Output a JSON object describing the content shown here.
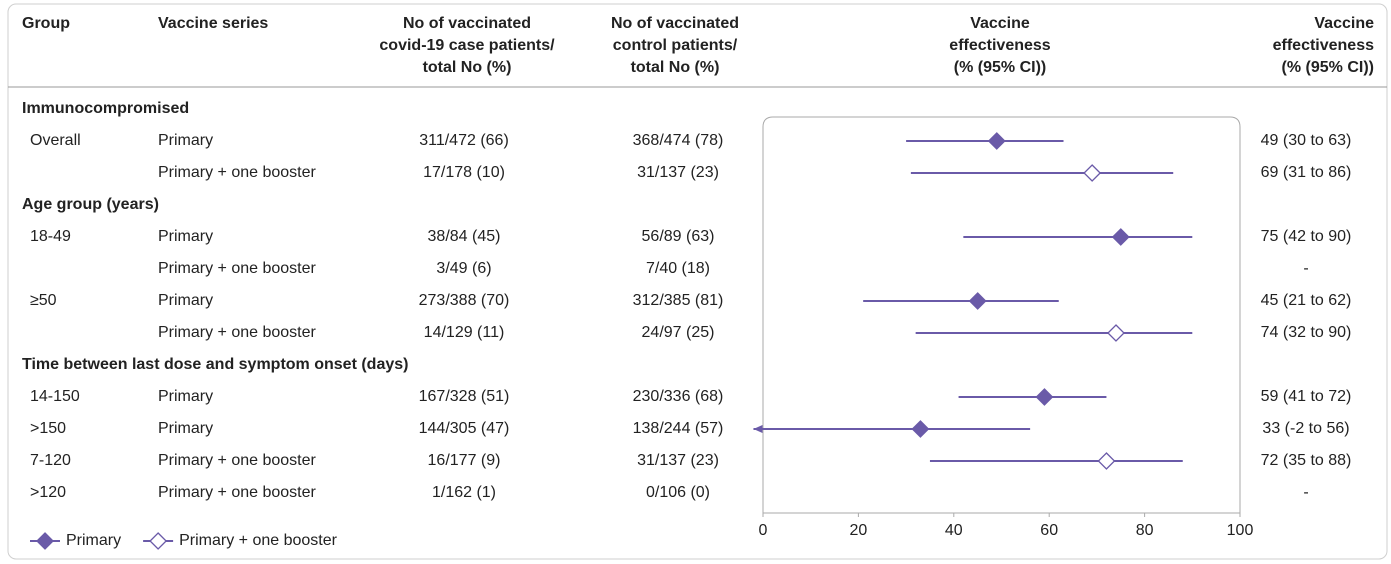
{
  "chart_data": {
    "type": "forest",
    "headers": [
      [
        "Group"
      ],
      [
        "Vaccine series"
      ],
      [
        "No of vaccinated",
        "covid-19 case patients/",
        "total No (%)"
      ],
      [
        "No of vaccinated",
        "control patients/",
        "total No (%)"
      ],
      [
        "Vaccine",
        "effectiveness",
        "(% (95% CI))"
      ],
      [
        "Vaccine",
        "effectiveness",
        "(% (95% CI))"
      ]
    ],
    "sections": [
      {
        "title": "Immunocompromised",
        "rows": [
          {
            "group": "Overall",
            "series": "Primary",
            "cases": "311/472 (66)",
            "controls": "368/474 (78)",
            "ve": 49,
            "ci": [
              30,
              63
            ],
            "label": "49 (30 to 63)"
          },
          {
            "group": null,
            "series": "Primary + one booster",
            "cases": "17/178 (10)",
            "controls": "31/137 (23)",
            "ve": 69,
            "ci": [
              31,
              86
            ],
            "label": "69 (31 to 86)"
          }
        ]
      },
      {
        "title": "Age group (years)",
        "rows": [
          {
            "group": "18-49",
            "series": "Primary",
            "cases": "38/84 (45)",
            "controls": "56/89 (63)",
            "ve": 75,
            "ci": [
              42,
              90
            ],
            "label": "75 (42 to 90)"
          },
          {
            "group": null,
            "series": "Primary + one booster",
            "cases": "3/49 (6)",
            "controls": "7/40 (18)",
            "ve": null,
            "ci": null,
            "label": "-"
          },
          {
            "group": "≥50",
            "series": "Primary",
            "cases": "273/388 (70)",
            "controls": "312/385 (81)",
            "ve": 45,
            "ci": [
              21,
              62
            ],
            "label": "45 (21 to 62)"
          },
          {
            "group": null,
            "series": "Primary + one booster",
            "cases": "14/129 (11)",
            "controls": "24/97 (25)",
            "ve": 74,
            "ci": [
              32,
              90
            ],
            "label": "74 (32 to 90)"
          }
        ]
      },
      {
        "title": "Time between last dose and symptom onset (days)",
        "rows": [
          {
            "group": "14-150",
            "series": "Primary",
            "cases": "167/328 (51)",
            "controls": "230/336 (68)",
            "ve": 59,
            "ci": [
              41,
              72
            ],
            "label": "59 (41 to 72)"
          },
          {
            "group": ">150",
            "series": "Primary",
            "cases": "144/305 (47)",
            "controls": "138/244 (57)",
            "ve": 33,
            "ci": [
              -2,
              56
            ],
            "label": "33 (-2 to 56)"
          },
          {
            "group": "7-120",
            "series": "Primary + one booster",
            "cases": "16/177 (9)",
            "controls": "31/137 (23)",
            "ve": 72,
            "ci": [
              35,
              88
            ],
            "label": "72 (35 to 88)"
          },
          {
            "group": ">120",
            "series": "Primary + one booster",
            "cases": "1/162 (1)",
            "controls": "0/106 (0)",
            "ve": null,
            "ci": null,
            "label": "-"
          }
        ]
      }
    ],
    "legend": [
      {
        "name": "Primary",
        "color": "#6a5aa8",
        "marker": "filled"
      },
      {
        "name": "Primary + one booster",
        "color": "#6a5aa8",
        "marker": "open"
      }
    ],
    "xlim": [
      0,
      100
    ],
    "xticks": [
      0,
      20,
      40,
      60,
      80,
      100
    ]
  }
}
